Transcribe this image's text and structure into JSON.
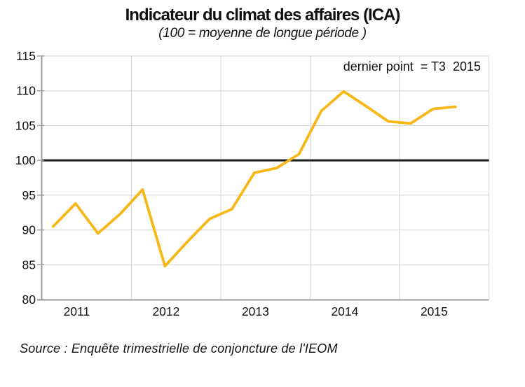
{
  "title": "Indicateur du climat des affaires (ICA)",
  "subtitle": "(100 = moyenne de longue période )",
  "annotation": "dernier point  = T3  2015",
  "source": "Source : Enquête trimestrielle de conjoncture de l'IEOM",
  "colors": {
    "line": "#F7B716",
    "reference_line": "#1A1A1A",
    "grid": "#D9D9D9",
    "axis": "#9C9C9C",
    "text": "#111111"
  },
  "chart_data": {
    "type": "line",
    "title": "Indicateur du climat des affaires (ICA)",
    "subtitle": "(100 = moyenne de longue période )",
    "annotation": "dernier point = T3 2015",
    "x": [
      "T1 2011",
      "T2 2011",
      "T3 2011",
      "T4 2011",
      "T1 2012",
      "T2 2012",
      "T3 2012",
      "T4 2012",
      "T1 2013",
      "T2 2013",
      "T3 2013",
      "T4 2013",
      "T1 2014",
      "T2 2014",
      "T3 2014",
      "T4 2014",
      "T1 2015",
      "T2 2015",
      "T3 2015"
    ],
    "series": [
      {
        "name": "ICA",
        "values": [
          90.5,
          93.8,
          89.5,
          92.3,
          95.8,
          84.8,
          88.3,
          91.6,
          93.0,
          98.2,
          98.9,
          100.9,
          107.1,
          109.9,
          107.8,
          105.6,
          105.3,
          107.4,
          107.7
        ]
      }
    ],
    "year_labels": [
      "2011",
      "2012",
      "2013",
      "2014",
      "2015"
    ],
    "quarters_per_year": 4,
    "x_slots": 20,
    "ylim": [
      80,
      115
    ],
    "ytick_step": 5,
    "reference_line": 100,
    "grid": true,
    "legend": "none",
    "xlabel": "",
    "ylabel": ""
  }
}
